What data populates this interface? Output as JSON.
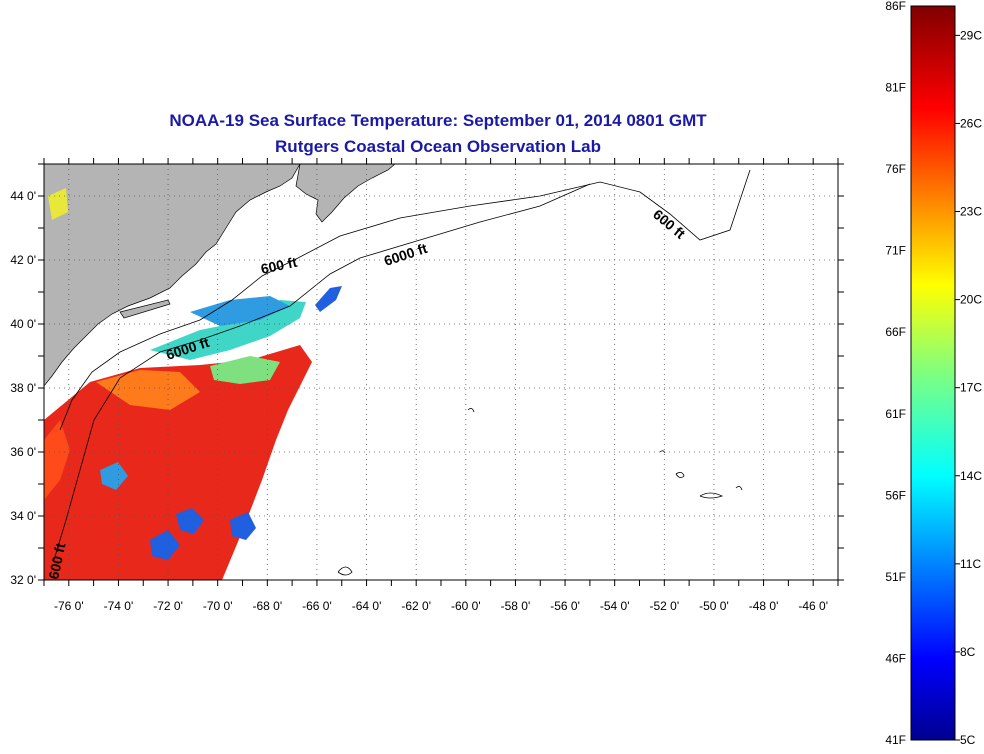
{
  "title": {
    "line1": "NOAA-19 Sea Surface Temperature:  September 01, 2014 0801 GMT",
    "line2": "Rutgers Coastal Ocean Observation Lab"
  },
  "map": {
    "lat_labels": [
      "44 0'",
      "42 0'",
      "40 0'",
      "38 0'",
      "36 0'",
      "34 0'",
      "32 0'"
    ],
    "lon_labels": [
      "-76 0'",
      "-74 0'",
      "-72 0'",
      "-70 0'",
      "-68 0'",
      "-66 0'",
      "-64 0'",
      "-62 0'",
      "-60 0'",
      "-58 0'",
      "-56 0'",
      "-54 0'",
      "-52 0'",
      "-50 0'",
      "-48 0'",
      "-46 0'"
    ],
    "isobath_labels": {
      "shelf_600_north": "600 ft",
      "slope_6000_east": "6000 ft",
      "shelf_600_east": "600 ft",
      "slope_6000_west": "6000 ft",
      "shelf_600_south": "600 ft"
    },
    "colors": {
      "land": "#b4b4b4",
      "ocean_no_data": "#ffffff",
      "warm": "#e8281a",
      "cool": "#1f5fe0",
      "mid": "#3fd6c8"
    }
  },
  "colorbar": {
    "fahrenheit": [
      "86F",
      "81F",
      "76F",
      "71F",
      "66F",
      "61F",
      "56F",
      "51F",
      "46F",
      "41F"
    ],
    "celsius": [
      "29C",
      "26C",
      "23C",
      "20C",
      "17C",
      "14C",
      "11C",
      "8C",
      "5C"
    ]
  }
}
